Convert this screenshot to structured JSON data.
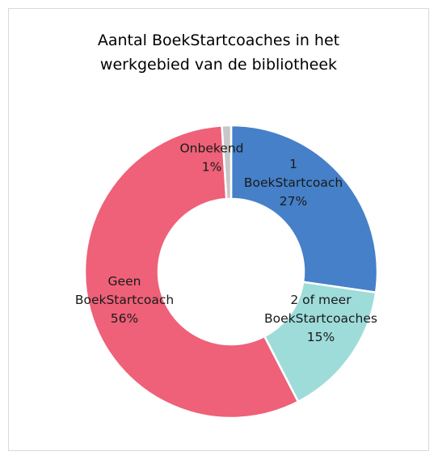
{
  "chart_data": {
    "type": "pie",
    "title_lines": [
      "Aantal BoekStartcoaches in het",
      "werkgebied van de bibliotheek"
    ],
    "slices": [
      {
        "label_lines": [
          "1",
          "BoekStartcoach"
        ],
        "value": 27,
        "value_label": "27%",
        "color": "#4580c8"
      },
      {
        "label_lines": [
          "2 of meer",
          "BoekStartcoaches"
        ],
        "value": 15,
        "value_label": "15%",
        "color": "#9edcda"
      },
      {
        "label_lines": [
          "Geen",
          "BoekStartcoach"
        ],
        "value": 56,
        "value_label": "56%",
        "color": "#ee6178"
      },
      {
        "label_lines": [
          "Onbekend"
        ],
        "value": 1,
        "value_label": "1%",
        "color": "#c7c7c7"
      }
    ],
    "legend": "none"
  }
}
